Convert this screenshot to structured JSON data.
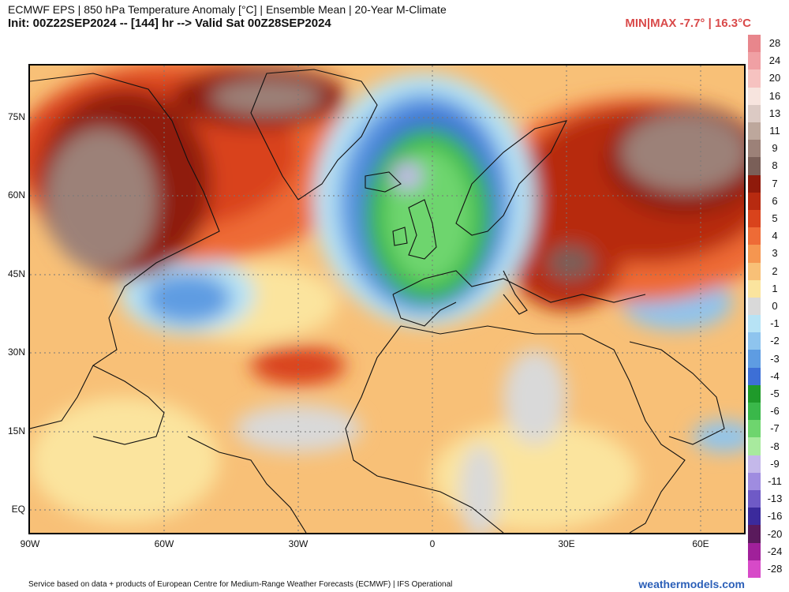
{
  "header": {
    "title": "ECMWF EPS | 850 hPa Temperature Anomaly [°C] | Ensemble Mean | 20-Year M-Climate",
    "subtitle": "Init: 00Z22SEP2024 -- [144] hr --> Valid Sat 00Z28SEP2024",
    "minmax": "MIN|MAX -7.7° | 16.3°C"
  },
  "map": {
    "lat_labels": [
      "75N",
      "60N",
      "45N",
      "30N",
      "15N",
      "EQ"
    ],
    "lon_labels": [
      "90W",
      "60W",
      "30W",
      "0",
      "30E",
      "60E"
    ]
  },
  "colorbar": {
    "labels": [
      "28",
      "24",
      "20",
      "16",
      "13",
      "11",
      "9",
      "8",
      "7",
      "6",
      "5",
      "4",
      "3",
      "2",
      "1",
      "0",
      "-1",
      "-2",
      "-3",
      "-4",
      "-5",
      "-6",
      "-7",
      "-8",
      "-9",
      "-11",
      "-13",
      "-16",
      "-20",
      "-24",
      "-28"
    ],
    "colors": [
      "#e8868c",
      "#f0a0a4",
      "#f6c2c0",
      "#f7e4de",
      "#dccac4",
      "#bda79c",
      "#9c8178",
      "#7a5f58",
      "#8f1a0b",
      "#b72a10",
      "#d9431c",
      "#ee6b36",
      "#f59650",
      "#f8c077",
      "#fbe49e",
      "#d9d9d9",
      "#b7e3f5",
      "#8ec4ee",
      "#5e9ce2",
      "#3d6fd6",
      "#1f9a2a",
      "#3ab84a",
      "#6ed56e",
      "#a8ea9e",
      "#c4b8ea",
      "#9f8ce0",
      "#6f5ac6",
      "#3b2a9c",
      "#5a1a5c",
      "#a0209a",
      "#d74ac8"
    ]
  },
  "footer": {
    "left": "Service based on data + products of European Centre for Medium-Range Weather Forecasts (ECMWF) | IFS Operational",
    "right": "weathermodels.com"
  }
}
